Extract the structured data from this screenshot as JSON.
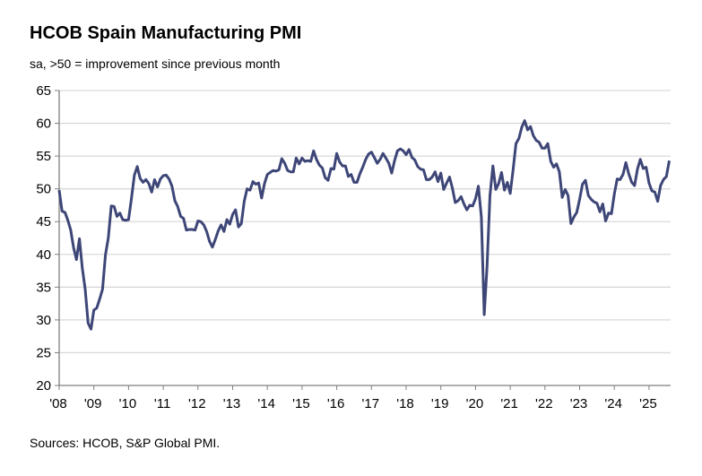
{
  "chart_data": {
    "type": "line",
    "title": "HCOB Spain Manufacturing PMI",
    "subtitle": "sa, >50 = improvement since previous month",
    "source": "Sources: HCOB, S&P Global PMI.",
    "xlabel": "",
    "ylabel": "",
    "ylim": [
      20,
      65
    ],
    "yticks": [
      "20",
      "25",
      "30",
      "35",
      "40",
      "45",
      "50",
      "55",
      "60",
      "65"
    ],
    "xticks": [
      "'08",
      "'09",
      "'10",
      "'11",
      "'12",
      "'13",
      "'14",
      "'15",
      "'16",
      "'17",
      "'18",
      "'19",
      "'20",
      "'21",
      "'22",
      "'23",
      "'24",
      "'25"
    ],
    "grid": "horizontal",
    "line_color": "#3d4677",
    "start": "2008-01",
    "frequency": "monthly",
    "series": [
      {
        "values": [
          49.8,
          46.6,
          46.4,
          45.2,
          43.7,
          41.0,
          39.2,
          42.4,
          37.9,
          34.7,
          29.5,
          28.6,
          31.5,
          31.8,
          33.2,
          34.7,
          39.9,
          42.5,
          47.4,
          47.3,
          45.8,
          46.3,
          45.3,
          45.2,
          45.3,
          48.5,
          52.1,
          53.4,
          51.6,
          51.0,
          51.4,
          50.8,
          49.5,
          51.4,
          50.3,
          51.5,
          52.0,
          52.1,
          51.5,
          50.4,
          48.2,
          47.3,
          45.8,
          45.5,
          43.7,
          43.8,
          43.8,
          43.7,
          45.1,
          45.0,
          44.5,
          43.5,
          42.0,
          41.1,
          42.3,
          43.6,
          44.5,
          43.5,
          45.3,
          44.6,
          46.1,
          46.8,
          44.2,
          44.7,
          48.1,
          50.0,
          49.8,
          51.1,
          50.7,
          50.9,
          48.6,
          50.8,
          52.2,
          52.5,
          52.8,
          52.7,
          52.9,
          54.6,
          53.9,
          52.8,
          52.6,
          52.6,
          54.7,
          53.8,
          54.7,
          54.2,
          54.3,
          54.2,
          55.8,
          54.5,
          53.6,
          53.2,
          51.7,
          51.3,
          53.1,
          53.0,
          55.4,
          54.1,
          53.5,
          53.5,
          51.9,
          52.2,
          51.0,
          51.0,
          52.3,
          53.3,
          54.5,
          55.3,
          55.6,
          54.8,
          53.9,
          54.5,
          55.4,
          54.7,
          53.9,
          52.4,
          54.3,
          55.8,
          56.1,
          55.8,
          55.2,
          56.0,
          54.8,
          54.4,
          53.4,
          53.0,
          52.9,
          51.4,
          51.4,
          51.8,
          52.6,
          51.1,
          52.4,
          49.9,
          50.9,
          51.8,
          50.1,
          47.9,
          48.2,
          48.8,
          47.7,
          46.8,
          47.5,
          47.4,
          48.5,
          50.4,
          45.7,
          30.8,
          38.3,
          49.0,
          53.5,
          49.9,
          50.8,
          52.5,
          49.8,
          51.0,
          49.3,
          52.9,
          56.9,
          57.7,
          59.4,
          60.4,
          59.0,
          59.5,
          58.1,
          57.4,
          57.1,
          56.2,
          56.2,
          56.9,
          54.2,
          53.3,
          53.8,
          52.6,
          48.7,
          49.9,
          49.0,
          44.7,
          45.7,
          46.4,
          48.4,
          50.7,
          51.3,
          49.0,
          48.4,
          48.0,
          47.8,
          46.5,
          47.7,
          45.1,
          46.3,
          46.2,
          49.2,
          51.5,
          51.4,
          52.2,
          54.0,
          52.3,
          51.0,
          50.5,
          53.0,
          54.5,
          53.1,
          53.3,
          50.9,
          49.7,
          49.5,
          48.1,
          50.5,
          51.4,
          51.9,
          54.3
        ]
      }
    ]
  }
}
